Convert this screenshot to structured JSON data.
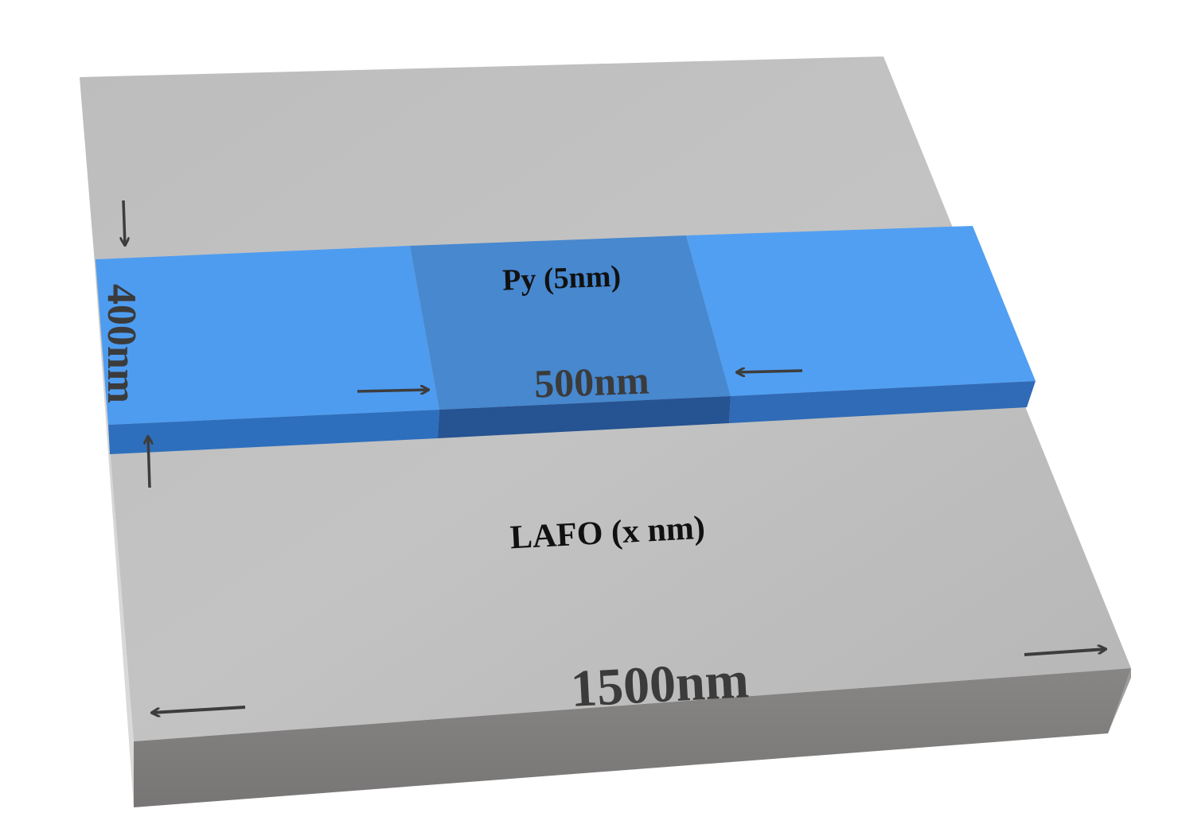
{
  "labels": {
    "film_layer": "Py (5nm)",
    "substrate_layer": "LAFO (x nm)",
    "strip_width": "400nm",
    "gap_length": "500nm",
    "substrate_length": "1500nm"
  },
  "colors": {
    "background": "#ffffff",
    "substrate_top": "#bcbcbc",
    "substrate_front": "#7d7b7a",
    "substrate_side": "#a2a2a2",
    "strip_top": "#4e9cf0",
    "strip_front": "#2e6fbd",
    "gap_top": "#4788cf",
    "gap_front": "#265391",
    "arrow": "#3d3d3d",
    "label_dark": "#111111",
    "label_gray": "#3b3b3b"
  }
}
